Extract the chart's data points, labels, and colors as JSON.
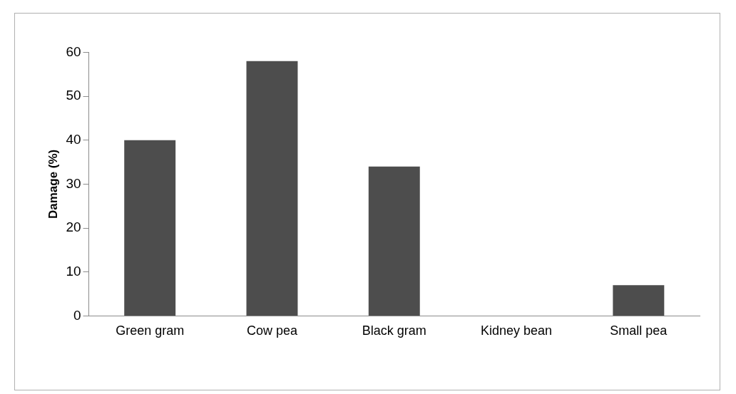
{
  "chart_data": {
    "type": "bar",
    "ylabel": "Damage (%)",
    "categories": [
      "Green gram",
      "Cow pea",
      "Black gram",
      "Kidney bean",
      "Small pea"
    ],
    "values": [
      40,
      58,
      34,
      0,
      7
    ],
    "color": "#4d4d4d",
    "ylim": [
      0,
      60
    ],
    "yticks": [
      0,
      10,
      20,
      30,
      40,
      50,
      60
    ],
    "grid": false,
    "legend": false
  }
}
